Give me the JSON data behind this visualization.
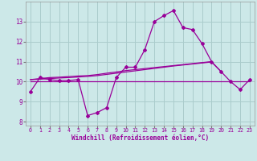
{
  "x": [
    0,
    1,
    2,
    3,
    4,
    5,
    6,
    7,
    8,
    9,
    10,
    11,
    12,
    13,
    14,
    15,
    16,
    17,
    18,
    19,
    20,
    21,
    22,
    23
  ],
  "line_main": [
    9.5,
    10.2,
    10.1,
    10.05,
    10.05,
    10.1,
    8.3,
    8.45,
    8.7,
    10.2,
    10.72,
    10.72,
    11.6,
    13.0,
    13.3,
    13.55,
    12.7,
    12.6,
    11.9,
    11.0,
    10.5,
    10.0,
    9.6,
    10.1
  ],
  "line_flat": [
    10.0,
    10.0,
    10.0,
    10.0,
    10.0,
    10.0,
    10.0,
    10.0,
    10.0,
    10.0,
    10.0,
    10.0,
    10.0,
    10.0,
    10.0,
    10.0,
    10.0,
    10.0,
    10.0,
    10.0,
    10.0,
    10.0,
    10.0,
    10.0
  ],
  "line_slow1": [
    10.1,
    10.15,
    10.2,
    10.22,
    10.25,
    10.28,
    10.3,
    10.35,
    10.42,
    10.48,
    10.55,
    10.6,
    10.65,
    10.7,
    10.75,
    10.8,
    10.85,
    10.9,
    10.95,
    11.0
  ],
  "line_slow1_x": [
    0,
    1,
    2,
    3,
    4,
    5,
    6,
    7,
    8,
    9,
    10,
    11,
    12,
    13,
    14,
    15,
    16,
    17,
    18,
    19
  ],
  "line_slow2": [
    10.1,
    10.12,
    10.15,
    10.18,
    10.2,
    10.23,
    10.26,
    10.3,
    10.36,
    10.42,
    10.48,
    10.54,
    10.6,
    10.66,
    10.72,
    10.78,
    10.83,
    10.88,
    10.93,
    10.98,
    10.5
  ],
  "line_slow2_x": [
    0,
    1,
    2,
    3,
    4,
    5,
    6,
    7,
    8,
    9,
    10,
    11,
    12,
    13,
    14,
    15,
    16,
    17,
    18,
    19,
    20
  ],
  "color": "#990099",
  "bg_color": "#cce8e8",
  "grid_color": "#aacccc",
  "xlabel": "Windchill (Refroidissement éolien,°C)",
  "ylim": [
    7.8,
    14.0
  ],
  "xlim": [
    -0.5,
    23.5
  ],
  "yticks": [
    8,
    9,
    10,
    11,
    12,
    13
  ],
  "xticks": [
    0,
    1,
    2,
    3,
    4,
    5,
    6,
    7,
    8,
    9,
    10,
    11,
    12,
    13,
    14,
    15,
    16,
    17,
    18,
    19,
    20,
    21,
    22,
    23
  ]
}
